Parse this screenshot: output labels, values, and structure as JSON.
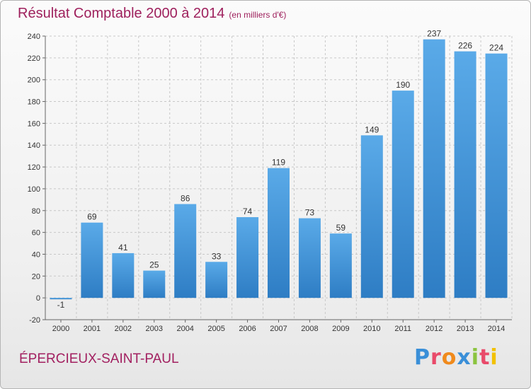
{
  "header": {
    "title": "Résultat Comptable 2000 à 2014",
    "subtitle": "(en milliers d'€)"
  },
  "footer": {
    "commune": "ÉPERCIEUX-SAINT-PAUL",
    "logo_text": "Proxiti",
    "logo_colors": [
      "#3a8fd8",
      "#e94a6a",
      "#f08a1c",
      "#3a8fd8",
      "#8bc43f",
      "#e94a6a",
      "#f2c100"
    ]
  },
  "colors": {
    "bar": "#4b9ee0",
    "bar_top": "#5aaae8",
    "bar_bottom": "#2e7dc4",
    "title": "#9e1f5c",
    "grid": "#c8c8c8"
  },
  "chart_data": {
    "type": "bar",
    "title": "Résultat Comptable 2000 à 2014",
    "ylabel": "en milliers d'€",
    "xlabel": "",
    "categories": [
      "2000",
      "2001",
      "2002",
      "2003",
      "2004",
      "2005",
      "2006",
      "2007",
      "2008",
      "2009",
      "2010",
      "2011",
      "2012",
      "2013",
      "2014"
    ],
    "values": [
      -1,
      69,
      41,
      25,
      86,
      33,
      74,
      119,
      73,
      59,
      149,
      190,
      237,
      226,
      224
    ],
    "ylim": [
      -20,
      240
    ],
    "yticks": [
      -20,
      0,
      20,
      40,
      60,
      80,
      100,
      120,
      140,
      160,
      180,
      200,
      220,
      240
    ],
    "grid": true
  }
}
